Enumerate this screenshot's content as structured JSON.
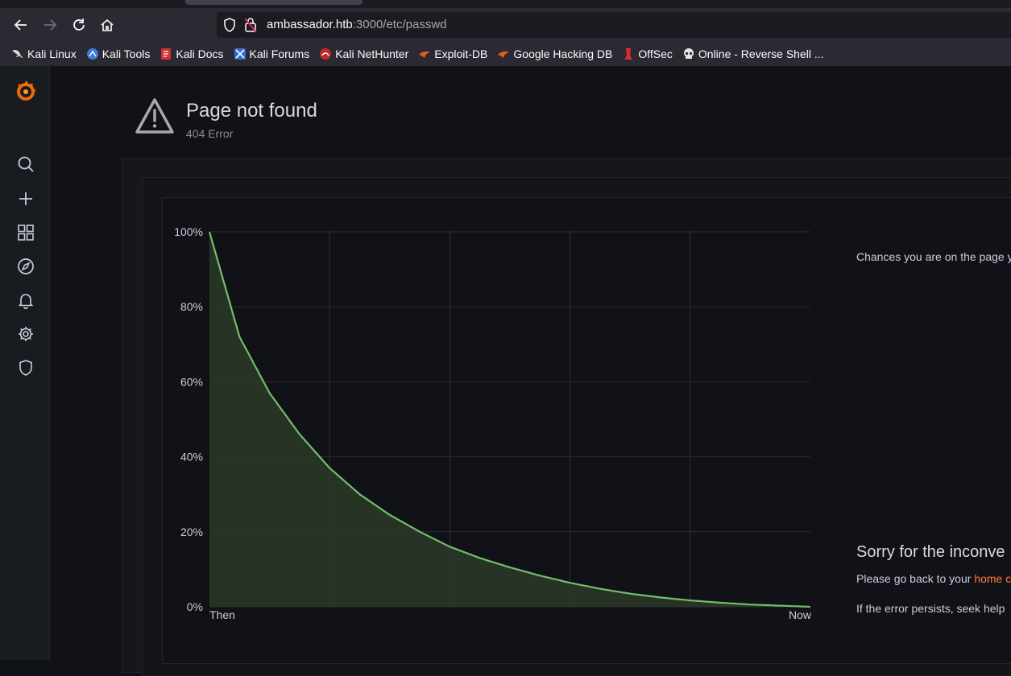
{
  "browser": {
    "url_host": "ambassador.htb",
    "url_path": ":3000/etc/passwd",
    "bookmarks": [
      {
        "label": "Kali Linux",
        "icon": "kali-dragon-icon"
      },
      {
        "label": "Kali Tools",
        "icon": "kali-tools-icon"
      },
      {
        "label": "Kali Docs",
        "icon": "kali-docs-icon"
      },
      {
        "label": "Kali Forums",
        "icon": "kali-forums-icon"
      },
      {
        "label": "Kali NetHunter",
        "icon": "kali-nethunter-icon"
      },
      {
        "label": "Exploit-DB",
        "icon": "exploit-db-icon"
      },
      {
        "label": "Google Hacking DB",
        "icon": "google-hacking-db-icon"
      },
      {
        "label": "OffSec",
        "icon": "offsec-icon"
      },
      {
        "label": "Online - Reverse Shell ...",
        "icon": "skull-icon"
      }
    ]
  },
  "page": {
    "title": "Page not found",
    "subtitle": "404 Error",
    "chances_text": "Chances you are on the page y",
    "sorry_title": "Sorry for the inconve",
    "go_back_prefix": "Please go back to your ",
    "go_back_link": "home c",
    "persist_text": "If the error persists, seek help"
  },
  "colors": {
    "accent_orange": "#ff7a33",
    "line_green": "#73bf69",
    "fill_green": "#2a3a28"
  },
  "chart_data": {
    "type": "area",
    "x_labels": [
      "Then",
      "Now"
    ],
    "y_ticks": [
      "0%",
      "20%",
      "40%",
      "60%",
      "80%",
      "100%"
    ],
    "ylim": [
      0,
      100
    ],
    "x": [
      0,
      0.05,
      0.1,
      0.15,
      0.2,
      0.25,
      0.3,
      0.35,
      0.4,
      0.45,
      0.5,
      0.55,
      0.6,
      0.65,
      0.7,
      0.75,
      0.8,
      0.85,
      0.9,
      0.95,
      1.0
    ],
    "values": [
      100,
      72,
      57,
      46,
      37,
      30,
      24.5,
      20,
      16,
      13,
      10.5,
      8.3,
      6.4,
      4.8,
      3.5,
      2.5,
      1.7,
      1.1,
      0.6,
      0.3,
      0
    ],
    "grid": true
  }
}
